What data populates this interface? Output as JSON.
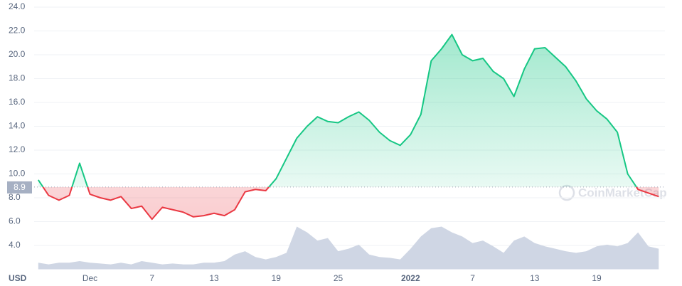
{
  "chart_data": {
    "type": "line",
    "unit_label": "USD",
    "watermark": "CoinMarketCap",
    "baseline": 8.9,
    "color_up": "#16c784",
    "color_down": "#ea3943",
    "volume_color": "#cfd6e4",
    "grid": true,
    "xlim": [
      -0.4,
      60.6
    ],
    "xticks": [
      {
        "value": 5,
        "label": "Dec"
      },
      {
        "value": 11,
        "label": "7"
      },
      {
        "value": 17,
        "label": "13"
      },
      {
        "value": 23,
        "label": "19"
      },
      {
        "value": 29,
        "label": "25"
      },
      {
        "value": 36,
        "label": "2022"
      },
      {
        "value": 42,
        "label": "7"
      },
      {
        "value": 48,
        "label": "13"
      },
      {
        "value": 54,
        "label": "19"
      }
    ],
    "ylim": [
      2,
      24
    ],
    "yticks": [
      {
        "value": 4,
        "label": "4.0"
      },
      {
        "value": 6,
        "label": "6.0"
      },
      {
        "value": 8,
        "label": "8.0"
      },
      {
        "value": 10,
        "label": "10.0"
      },
      {
        "value": 12,
        "label": "12.0"
      },
      {
        "value": 14,
        "label": "14.0"
      },
      {
        "value": 16,
        "label": "16.0"
      },
      {
        "value": 18,
        "label": "18.0"
      },
      {
        "value": 20,
        "label": "20.0"
      },
      {
        "value": 22,
        "label": "22.0"
      },
      {
        "value": 24,
        "label": "24.0"
      }
    ],
    "x": [
      0,
      1,
      2,
      3,
      4,
      5,
      6,
      7,
      8,
      9,
      10,
      11,
      12,
      13,
      14,
      15,
      16,
      17,
      18,
      19,
      20,
      21,
      22,
      23,
      24,
      25,
      26,
      27,
      28,
      29,
      30,
      31,
      32,
      33,
      34,
      35,
      36,
      37,
      38,
      39,
      40,
      41,
      42,
      43,
      44,
      45,
      46,
      47,
      48,
      49,
      50,
      51,
      52,
      53,
      54,
      55,
      56,
      57,
      58,
      59,
      60
    ],
    "values": [
      9.5,
      8.2,
      7.8,
      8.2,
      10.9,
      8.3,
      8.0,
      7.8,
      8.1,
      7.1,
      7.3,
      6.2,
      7.2,
      7.0,
      6.8,
      6.4,
      6.5,
      6.7,
      6.5,
      7.0,
      8.5,
      8.7,
      8.6,
      9.6,
      11.3,
      13.0,
      14.0,
      14.8,
      14.4,
      14.3,
      14.8,
      15.2,
      14.5,
      13.5,
      12.8,
      12.4,
      13.3,
      15.0,
      19.5,
      20.5,
      21.7,
      20.0,
      19.5,
      19.7,
      18.6,
      18.0,
      16.5,
      18.8,
      20.5,
      20.6,
      19.8,
      19.0,
      17.8,
      16.3,
      15.3,
      14.6,
      13.5,
      10.0,
      8.7,
      8.4,
      8.1
    ],
    "volume": [
      8,
      6,
      8,
      8,
      10,
      8,
      7,
      6,
      8,
      6,
      10,
      8,
      6,
      7,
      6,
      6,
      8,
      8,
      10,
      18,
      22,
      15,
      12,
      15,
      20,
      52,
      45,
      35,
      38,
      22,
      25,
      30,
      18,
      15,
      14,
      12,
      25,
      40,
      50,
      52,
      45,
      40,
      32,
      35,
      28,
      20,
      35,
      40,
      32,
      28,
      25,
      22,
      20,
      22,
      28,
      30,
      28,
      32,
      45,
      28,
      25
    ]
  }
}
